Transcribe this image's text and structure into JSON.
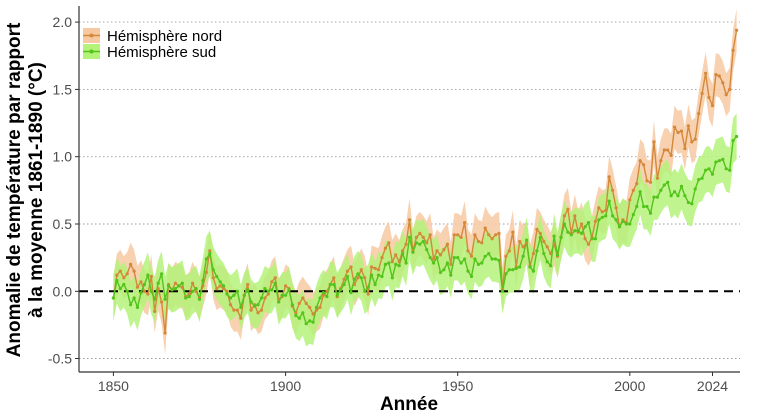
{
  "chart_data": {
    "type": "line",
    "title": "",
    "xlabel": "Année",
    "ylabel_lines": [
      "Anomalie de température par rapport",
      "à la moyenne 1861-1890 (°C)"
    ],
    "xlim": [
      1840,
      2032
    ],
    "ylim": [
      -0.6,
      2.12
    ],
    "x_ticks": [
      1850,
      1900,
      1950,
      2000,
      2024
    ],
    "x_tick_labels": [
      "1850",
      "1900",
      "1950",
      "2000",
      "2024"
    ],
    "y_ticks": [
      -0.5,
      0.0,
      0.5,
      1.0,
      1.5,
      2.0
    ],
    "y_tick_labels": [
      "-0.5",
      "0.0",
      "0.5",
      "1.0",
      "1.5",
      "2.0"
    ],
    "grid": "horizontal dotted",
    "reference_line": {
      "y": 0.0,
      "style": "dashed"
    },
    "legend": {
      "position": "top-left"
    },
    "series": [
      {
        "name": "Hémisphère nord",
        "color": "#d4883a",
        "band_color": "#f7c9a3",
        "band_halfwidth": 0.16,
        "x_start": 1850,
        "values": [
          -0.05,
          0.12,
          0.15,
          0.1,
          0.13,
          0.2,
          0.15,
          0.03,
          0.07,
          0.0,
          -0.02,
          0.11,
          -0.15,
          0.02,
          -0.08,
          -0.31,
          0.05,
          0.01,
          0.06,
          0.04,
          0.03,
          -0.04,
          -0.02,
          0.06,
          0.0,
          -0.05,
          0.04,
          0.14,
          0.3,
          0.1,
          0.02,
          0.04,
          0.02,
          0.0,
          -0.1,
          -0.14,
          -0.14,
          -0.2,
          -0.03,
          0.05,
          -0.14,
          -0.1,
          -0.16,
          -0.14,
          -0.05,
          -0.02,
          0.07,
          0.1,
          -0.06,
          -0.04,
          0.04,
          0.02,
          -0.11,
          -0.16,
          -0.09,
          -0.05,
          -0.09,
          -0.12,
          -0.17,
          -0.14,
          -0.12,
          -0.03,
          0.0,
          0.05,
          0.1,
          -0.04,
          0.02,
          0.09,
          0.15,
          0.18,
          0.05,
          0.1,
          0.16,
          0.1,
          -0.02,
          0.18,
          0.17,
          0.16,
          0.25,
          0.32,
          0.36,
          0.22,
          0.27,
          0.22,
          0.3,
          0.35,
          0.53,
          0.3,
          0.4,
          0.43,
          0.4,
          0.36,
          0.42,
          0.24,
          0.3,
          0.27,
          0.31,
          0.35,
          0.2,
          0.42,
          0.42,
          0.4,
          0.51,
          0.3,
          0.26,
          0.42,
          0.37,
          0.36,
          0.47,
          0.42,
          0.39,
          0.42,
          0.43,
          0.01,
          0.26,
          0.3,
          0.44,
          0.18,
          0.37,
          0.33,
          0.36,
          0.19,
          0.28,
          0.46,
          0.43,
          0.37,
          0.33,
          0.28,
          0.35,
          0.26,
          0.4,
          0.56,
          0.61,
          0.43,
          0.56,
          0.44,
          0.5,
          0.39,
          0.35,
          0.4,
          0.52,
          0.62,
          0.59,
          0.6,
          0.85,
          0.75,
          0.62,
          0.48,
          0.53,
          0.51,
          0.68,
          0.75,
          0.8,
          0.97,
          0.94,
          0.82,
          0.81,
          1.11,
          0.84,
          0.97,
          1.05,
          1.05,
          1.01,
          1.22,
          1.18,
          1.19,
          1.06,
          1.23,
          1.11,
          1.13,
          1.32,
          1.47,
          1.62,
          1.44,
          1.38,
          1.61,
          1.6,
          1.55,
          1.46,
          1.5,
          1.79,
          1.94
        ]
      },
      {
        "name": "Hémisphère sud",
        "color": "#52c41a",
        "band_color": "#b4f27a",
        "band_halfwidth": 0.17,
        "x_start": 1850,
        "values": [
          -0.05,
          0.08,
          0.02,
          0.05,
          0.0,
          -0.1,
          -0.05,
          -0.12,
          -0.01,
          0.05,
          0.12,
          0.0,
          -0.06,
          0.06,
          0.13,
          -0.06,
          0.04,
          0.01,
          0.02,
          0.04,
          0.06,
          -0.05,
          -0.04,
          0.0,
          0.02,
          -0.06,
          0.08,
          0.24,
          0.28,
          0.16,
          0.11,
          0.07,
          0.04,
          -0.02,
          -0.05,
          -0.03,
          0.0,
          -0.12,
          -0.03,
          0.01,
          -0.08,
          -0.11,
          -0.1,
          -0.05,
          0.02,
          0.0,
          0.01,
          0.06,
          -0.08,
          -0.03,
          -0.03,
          0.01,
          -0.1,
          -0.18,
          -0.2,
          -0.16,
          -0.24,
          -0.22,
          -0.23,
          -0.12,
          -0.05,
          -0.01,
          -0.04,
          0.05,
          0.05,
          -0.03,
          0.01,
          0.05,
          0.11,
          -0.01,
          0.09,
          0.13,
          0.1,
          0.0,
          0.03,
          0.12,
          0.05,
          0.12,
          0.11,
          0.2,
          0.21,
          0.1,
          0.2,
          0.19,
          0.28,
          0.21,
          0.4,
          0.29,
          0.36,
          0.35,
          0.37,
          0.31,
          0.25,
          0.21,
          0.25,
          0.14,
          0.16,
          0.21,
          0.12,
          0.25,
          0.25,
          0.21,
          0.24,
          0.15,
          0.11,
          0.24,
          0.2,
          0.21,
          0.26,
          0.28,
          0.24,
          0.24,
          0.23,
          0.0,
          0.13,
          0.16,
          0.16,
          0.17,
          0.18,
          0.26,
          0.38,
          0.18,
          0.15,
          0.3,
          0.4,
          0.28,
          0.22,
          0.19,
          0.41,
          0.27,
          0.4,
          0.5,
          0.44,
          0.42,
          0.45,
          0.45,
          0.43,
          0.48,
          0.51,
          0.39,
          0.39,
          0.53,
          0.55,
          0.56,
          0.67,
          0.56,
          0.53,
          0.48,
          0.52,
          0.5,
          0.5,
          0.57,
          0.63,
          0.74,
          0.63,
          0.63,
          0.58,
          0.7,
          0.7,
          0.75,
          0.79,
          0.81,
          0.71,
          0.74,
          0.71,
          0.78,
          0.71,
          0.66,
          0.65,
          0.76,
          0.83,
          0.84,
          0.9,
          0.91,
          0.87,
          0.96,
          0.97,
          0.98,
          0.91,
          0.9,
          1.12,
          1.15
        ]
      }
    ]
  }
}
